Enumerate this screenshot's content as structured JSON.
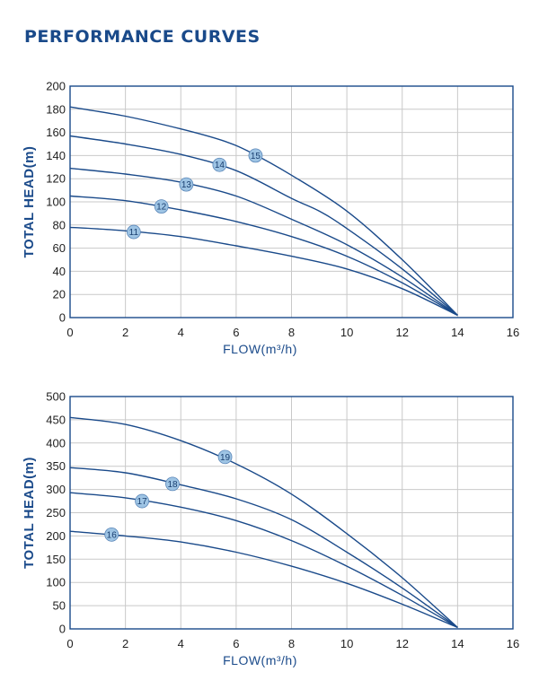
{
  "page": {
    "title": "PERFORMANCE CURVES"
  },
  "style": {
    "curve_color": "#1a4a8a",
    "grid_color": "#c9c9c9",
    "frame_color": "#1a4a8a",
    "badge_fill": "#9ec4e4",
    "badge_stroke": "#5a86b8"
  },
  "chart_data": [
    {
      "type": "line",
      "title": "",
      "xlabel": "FLOW(m³/h)",
      "ylabel": "TOTAL HEAD(m)",
      "xlim": [
        0,
        16
      ],
      "ylim": [
        0,
        200
      ],
      "x_ticks": [
        "0",
        "2",
        "4",
        "6",
        "8",
        "10",
        "12",
        "14",
        "16"
      ],
      "y_ticks": [
        "0",
        "20",
        "40",
        "60",
        "80",
        "100",
        "120",
        "140",
        "160",
        "180",
        "200"
      ],
      "grid": true,
      "series": [
        {
          "name": "11",
          "label_at": [
            2.3,
            74
          ],
          "points": [
            [
              0,
              78
            ],
            [
              2,
              75
            ],
            [
              4,
              70
            ],
            [
              6,
              62
            ],
            [
              8,
              53
            ],
            [
              10,
              42
            ],
            [
              12,
              25
            ],
            [
              14,
              2
            ]
          ]
        },
        {
          "name": "12",
          "label_at": [
            3.3,
            96
          ],
          "points": [
            [
              0,
              105
            ],
            [
              2,
              101
            ],
            [
              4,
              93
            ],
            [
              6,
              83
            ],
            [
              8,
              70
            ],
            [
              10,
              53
            ],
            [
              12,
              30
            ],
            [
              14,
              2
            ]
          ]
        },
        {
          "name": "13",
          "label_at": [
            4.2,
            115
          ],
          "points": [
            [
              0,
              129
            ],
            [
              2,
              124
            ],
            [
              4,
              117
            ],
            [
              6,
              105
            ],
            [
              8,
              85
            ],
            [
              10,
              63
            ],
            [
              12,
              35
            ],
            [
              14,
              2
            ]
          ]
        },
        {
          "name": "14",
          "label_at": [
            5.4,
            132
          ],
          "points": [
            [
              0,
              157
            ],
            [
              2,
              150
            ],
            [
              4,
              141
            ],
            [
              6,
              127
            ],
            [
              8,
              103
            ],
            [
              9,
              92
            ],
            [
              10,
              77
            ],
            [
              12,
              42
            ],
            [
              14,
              2
            ]
          ]
        },
        {
          "name": "15",
          "label_at": [
            6.7,
            140
          ],
          "points": [
            [
              0,
              182
            ],
            [
              2,
              174
            ],
            [
              4,
              163
            ],
            [
              5.5,
              153
            ],
            [
              6.5,
              143
            ],
            [
              8,
              123
            ],
            [
              10,
              92
            ],
            [
              12,
              50
            ],
            [
              14,
              2
            ]
          ]
        }
      ]
    },
    {
      "type": "line",
      "title": "",
      "xlabel": "FLOW(m³/h)",
      "ylabel": "TOTAL HEAD(m)",
      "xlim": [
        0,
        16
      ],
      "ylim": [
        0,
        500
      ],
      "x_ticks": [
        "0",
        "2",
        "4",
        "6",
        "8",
        "10",
        "12",
        "14",
        "16"
      ],
      "y_ticks": [
        "0",
        "50",
        "100",
        "150",
        "200",
        "250",
        "300",
        "350",
        "400",
        "450",
        "500"
      ],
      "grid": true,
      "series": [
        {
          "name": "16",
          "label_at": [
            1.5,
            203
          ],
          "points": [
            [
              0,
              210
            ],
            [
              2,
              200
            ],
            [
              4,
              187
            ],
            [
              6,
              165
            ],
            [
              8,
              135
            ],
            [
              10,
              98
            ],
            [
              12,
              53
            ],
            [
              14,
              3
            ]
          ]
        },
        {
          "name": "17",
          "label_at": [
            2.6,
            275
          ],
          "points": [
            [
              0,
              293
            ],
            [
              2,
              282
            ],
            [
              4,
              262
            ],
            [
              6,
              233
            ],
            [
              8,
              190
            ],
            [
              10,
              135
            ],
            [
              12,
              72
            ],
            [
              14,
              3
            ]
          ]
        },
        {
          "name": "18",
          "label_at": [
            3.7,
            312
          ],
          "points": [
            [
              0,
              347
            ],
            [
              2,
              336
            ],
            [
              4,
              310
            ],
            [
              6,
              280
            ],
            [
              8,
              235
            ],
            [
              10,
              165
            ],
            [
              12,
              88
            ],
            [
              14,
              3
            ]
          ]
        },
        {
          "name": "19",
          "label_at": [
            5.6,
            370
          ],
          "points": [
            [
              0,
              455
            ],
            [
              2,
              440
            ],
            [
              4,
              405
            ],
            [
              6,
              355
            ],
            [
              8,
              290
            ],
            [
              10,
              205
            ],
            [
              12,
              110
            ],
            [
              14,
              3
            ]
          ]
        }
      ]
    }
  ]
}
